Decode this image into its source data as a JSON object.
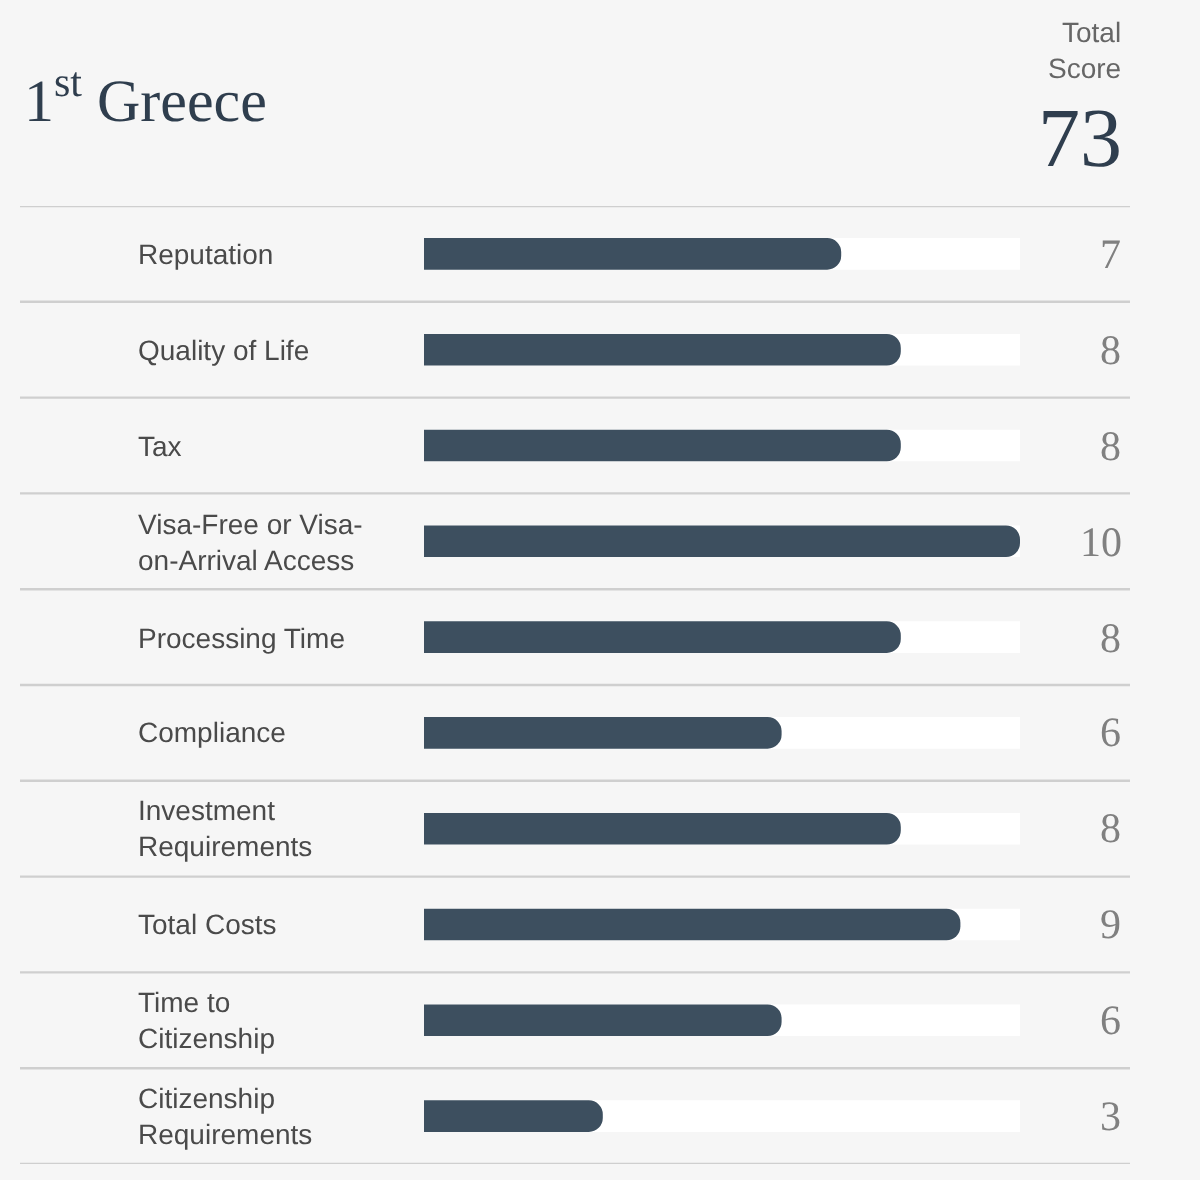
{
  "chart_data": {
    "type": "bar",
    "orientation": "horizontal",
    "title": "1$^{st}$ Greece",
    "annotations": [
      "Total\nScore",
      "73"
    ],
    "categories": [
      "Reputation",
      "Quality of Life",
      "Tax",
      "Visa-Free or Visa-\non-Arrival Access",
      "Processing Time",
      "Compliance",
      "Investment\nRequirements",
      "Total Costs",
      "Time to\nCitizenship",
      "Citizenship\nRequirements"
    ],
    "values": [
      7,
      8,
      8,
      10,
      8,
      6,
      8,
      9,
      6,
      3
    ],
    "color": "#3d4f5f",
    "xlim": [
      0,
      10
    ],
    "data_labels": true,
    "tick_labels": "y"
  }
}
